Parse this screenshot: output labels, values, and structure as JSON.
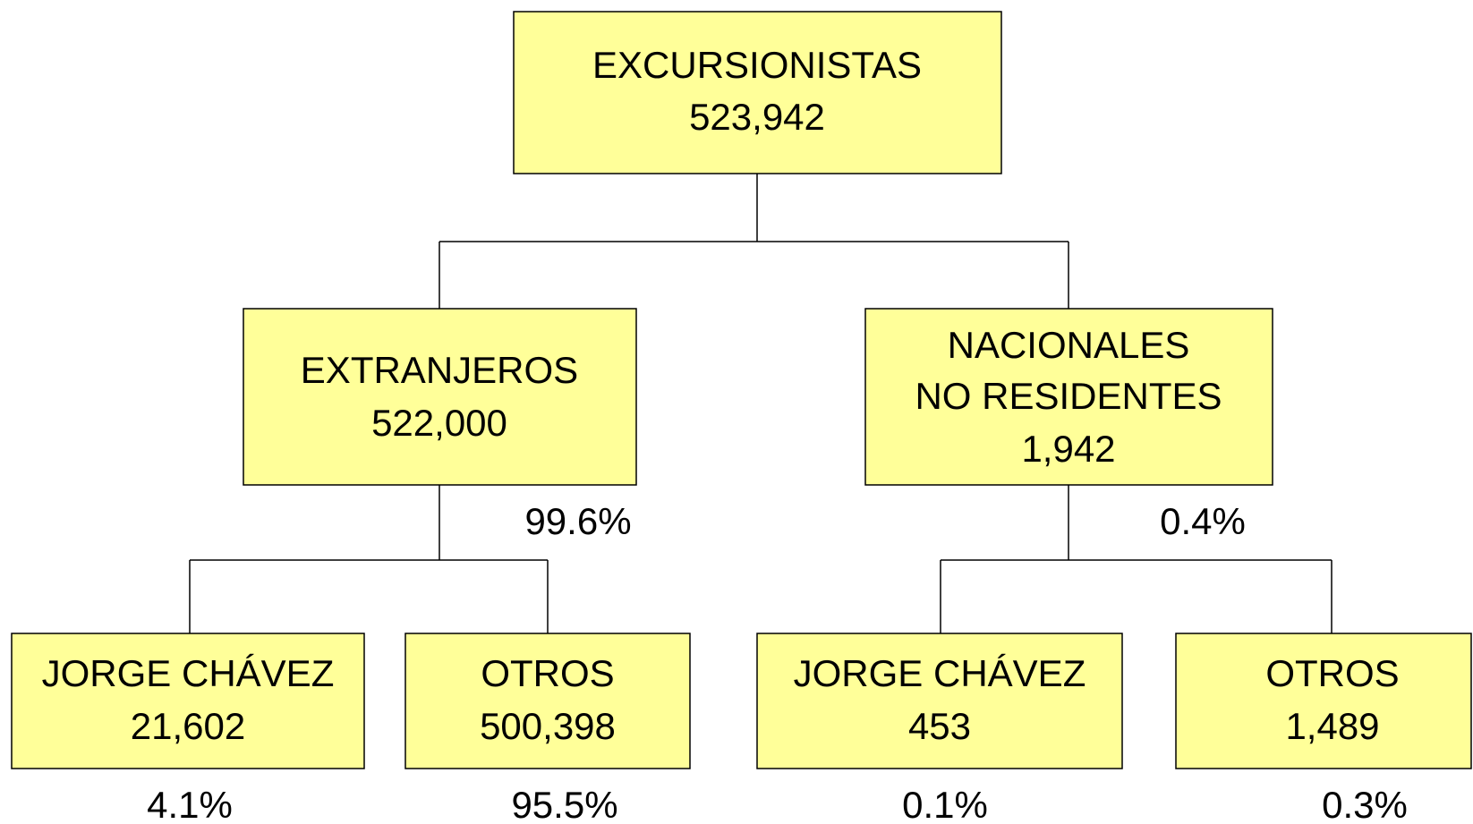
{
  "nodes": [
    {
      "lines": [
        "EXCURSIONISTAS",
        "523,942"
      ]
    },
    {
      "lines": [
        "EXTRANJEROS",
        "522,000"
      ]
    },
    {
      "lines": [
        "NACIONALES",
        "NO RESIDENTES",
        "1,942"
      ]
    },
    {
      "lines": [
        "JORGE CHÁVEZ",
        "21,602"
      ]
    },
    {
      "lines": [
        "OTROS",
        "500,398"
      ]
    },
    {
      "lines": [
        "JORGE CHÁVEZ",
        "453"
      ]
    },
    {
      "lines": [
        "OTROS",
        "1,489"
      ]
    }
  ],
  "percentages": [
    "99.6%",
    "0.4%",
    "4.1%",
    "95.5%",
    "0.1%",
    "0.3%"
  ]
}
